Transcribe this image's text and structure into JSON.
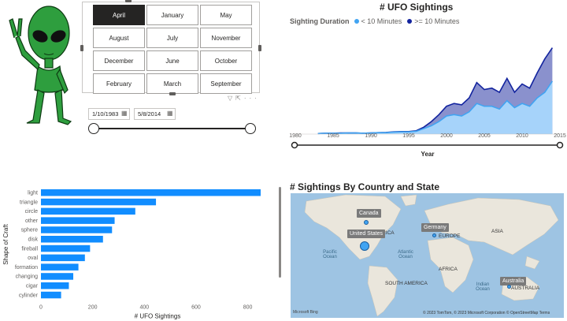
{
  "slicer": {
    "months": [
      "April",
      "January",
      "May",
      "August",
      "July",
      "November",
      "December",
      "June",
      "October",
      "February",
      "March",
      "September"
    ],
    "selected": "April",
    "start_date": "1/10/1983",
    "end_date": "5/8/2014",
    "toolbar_icons": [
      "filter-icon",
      "focus-mode-icon",
      "more-options-icon"
    ]
  },
  "line_chart": {
    "title": "# UFO Sightings",
    "legend_label": "Sighting Duration",
    "colors": {
      "short": "#41a4f2",
      "long": "#12239e"
    }
  },
  "bar_chart": {},
  "map": {
    "title": "# Sightings By Country and State",
    "tags": [
      "Canada",
      "United States",
      "Germany",
      "Australia"
    ],
    "continents": [
      "AMERICA",
      "EUROPE",
      "ASIA",
      "AFRICA",
      "SOUTH AMERICA",
      "AUSTRALIA"
    ],
    "oceans": [
      "Pacific Ocean",
      "Atlantic Ocean",
      "Indian Ocean"
    ],
    "logo": "Microsoft Bing",
    "attribution": "© 2023 TomTom, © 2023 Microsoft Corporation © OpenStreetMap Terms"
  },
  "chart_data": [
    {
      "type": "area",
      "title": "# UFO Sightings",
      "xlabel": "Year",
      "ylabel": "",
      "xlim": [
        1980,
        2015
      ],
      "x_ticks": [
        1980,
        1985,
        1990,
        1995,
        2000,
        2005,
        2010,
        2015
      ],
      "x": [
        1983,
        1984,
        1985,
        1986,
        1987,
        1988,
        1989,
        1990,
        1991,
        1992,
        1993,
        1994,
        1995,
        1996,
        1997,
        1998,
        1999,
        2000,
        2001,
        2002,
        2003,
        2004,
        2005,
        2006,
        2007,
        2008,
        2009,
        2010,
        2011,
        2012,
        2013,
        2014
      ],
      "series": [
        {
          "name": "< 10 Minutes",
          "values": [
            2,
            3,
            3,
            3,
            4,
            4,
            3,
            4,
            5,
            5,
            7,
            8,
            8,
            10,
            20,
            30,
            45,
            65,
            70,
            65,
            80,
            110,
            100,
            100,
            90,
            120,
            95,
            110,
            100,
            130,
            150,
            190
          ]
        },
        {
          "name": ">= 10 Minutes",
          "values": [
            2,
            3,
            3,
            4,
            4,
            4,
            3,
            4,
            5,
            6,
            8,
            9,
            9,
            12,
            25,
            45,
            70,
            100,
            110,
            105,
            130,
            185,
            160,
            165,
            150,
            200,
            150,
            180,
            165,
            220,
            270,
            310
          ]
        }
      ],
      "legend": "top-left",
      "grid": false
    },
    {
      "type": "bar",
      "orientation": "horizontal",
      "title": "",
      "xlabel": "# UFO Sightings",
      "ylabel": "Shape of Craft",
      "categories": [
        "light",
        "triangle",
        "circle",
        "other",
        "sphere",
        "disk",
        "fireball",
        "oval",
        "formation",
        "changing",
        "cigar",
        "cylinder"
      ],
      "values": [
        850,
        445,
        365,
        285,
        275,
        240,
        190,
        170,
        145,
        125,
        108,
        78
      ],
      "xlim": [
        0,
        850
      ],
      "x_ticks": [
        0,
        200,
        400,
        600,
        800
      ],
      "color": "#118dff",
      "grid": false
    }
  ]
}
